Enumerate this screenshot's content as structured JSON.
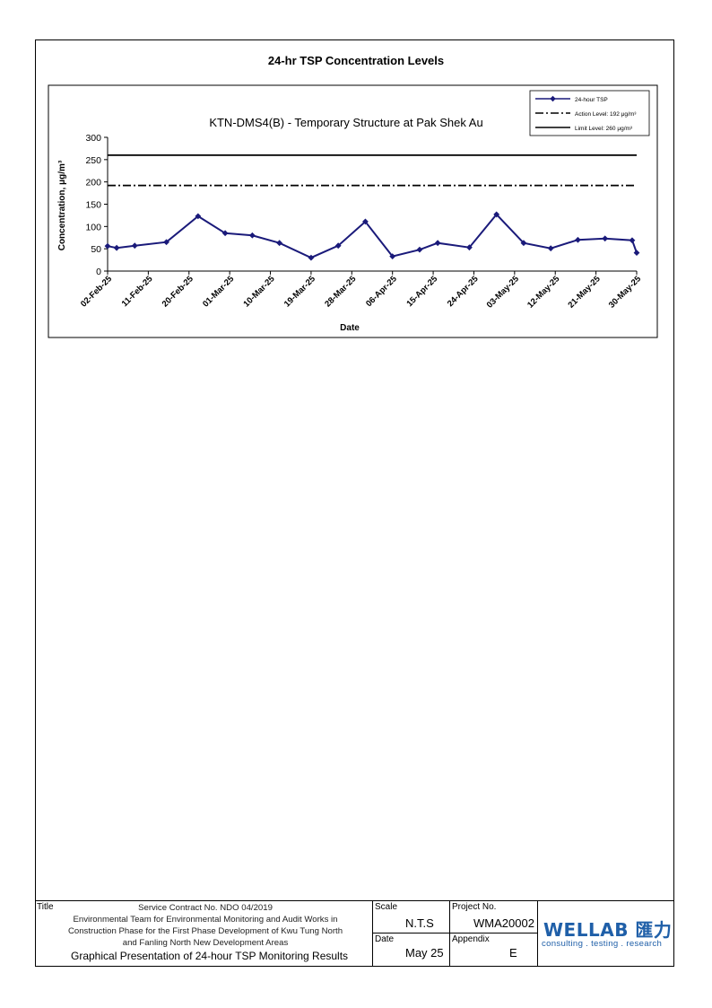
{
  "page_title": "24-hr TSP Concentration Levels",
  "colors": {
    "series": "#1a1a7a",
    "lines": "#000000",
    "logo": "#1f5fa8"
  },
  "chart_data": {
    "type": "line",
    "title": "KTN-DMS4(B) - Temporary Structure at Pak Shek Au",
    "xlabel": "Date",
    "ylabel": "Concentration, μg/m³",
    "ylim": [
      0,
      300
    ],
    "yticks": [
      0,
      50,
      100,
      150,
      200,
      250,
      300
    ],
    "xtick_labels": [
      "02-Feb-25",
      "11-Feb-25",
      "20-Feb-25",
      "01-Mar-25",
      "10-Mar-25",
      "19-Mar-25",
      "28-Mar-25",
      "06-Apr-25",
      "15-Apr-25",
      "24-Apr-25",
      "03-May-25",
      "12-May-25",
      "21-May-25",
      "30-May-25"
    ],
    "x_range": [
      "2025-02-02",
      "2025-05-30"
    ],
    "grid": false,
    "legend_position": "top-right",
    "series": [
      {
        "name": "24-hour TSP",
        "style": "line-with-diamond-markers",
        "x": [
          "2025-02-02",
          "2025-02-04",
          "2025-02-08",
          "2025-02-15",
          "2025-02-22",
          "2025-02-28",
          "2025-03-06",
          "2025-03-12",
          "2025-03-19",
          "2025-03-25",
          "2025-03-31",
          "2025-04-06",
          "2025-04-12",
          "2025-04-16",
          "2025-04-23",
          "2025-04-29",
          "2025-05-05",
          "2025-05-11",
          "2025-05-17",
          "2025-05-23",
          "2025-05-29",
          "2025-05-30"
        ],
        "values": [
          56,
          52,
          57,
          65,
          123,
          85,
          80,
          63,
          30,
          57,
          111,
          33,
          48,
          63,
          53,
          127,
          63,
          51,
          70,
          73,
          69,
          41
        ]
      },
      {
        "name": "Action Level: 192 μg/m³",
        "style": "dash-dot",
        "constant": 192
      },
      {
        "name": "Limit Level: 260 μg/m³",
        "style": "solid",
        "constant": 260
      }
    ]
  },
  "title_block": {
    "title_label": "Title",
    "contract_lines": [
      "Service Contract No. NDO 04/2019",
      "Environmental Team for Environmental Monitoring and Audit Works in",
      "Construction Phase for the First Phase Development of Kwu Tung North",
      "and Fanling North New Development Areas"
    ],
    "presentation_title": "Graphical Presentation of 24-hour TSP Monitoring Results",
    "scale_label": "Scale",
    "scale_value": "N.T.S",
    "project_label": "Project No.",
    "project_value": "WMA20002",
    "date_label": "Date",
    "date_value": "May 25",
    "appendix_label": "Appendix",
    "appendix_value": "E",
    "logo_text": "WELLAB 匯力",
    "logo_tagline": "consulting . testing . research"
  }
}
